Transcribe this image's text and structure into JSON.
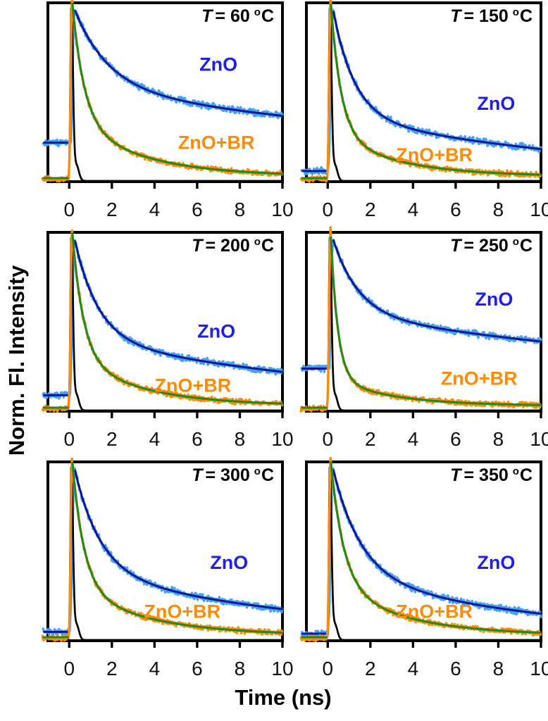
{
  "figure": {
    "y_axis_label": "Norm. Fl. Intensity",
    "x_axis_label": "Time (ns)"
  },
  "colors": {
    "zno_data": "#42A0F5",
    "zno_fit": "#0A1496",
    "zno_label": "#1E1EEF",
    "znobr_data": "#FF8A05",
    "znobr_fit": "#1E8B1E",
    "znobr_label": "#FF8A05",
    "irf": "#000000",
    "axis": "#000000",
    "tick_text": "#111111"
  },
  "chart_data": {
    "type": "line",
    "description": "Normalized time-resolved fluorescence decay curves of ZnO and ZnO+BR films annealed at six temperatures; noisy data traces with smooth fit lines and a sharp black instrument response function near t=0.",
    "layout": {
      "rows": 3,
      "cols": 2,
      "legend": "in-panel text annotations",
      "grid": false
    },
    "x_axis": {
      "label": "Time (ns)",
      "range": [
        -1,
        10
      ],
      "ticks": [
        0,
        2,
        4,
        6,
        8,
        10
      ],
      "tick_labels": [
        "0",
        "2",
        "4",
        "6",
        "8",
        "10"
      ]
    },
    "y_axis": {
      "label": "Norm. Fl. Intensity",
      "range": [
        0,
        1.05
      ],
      "ticks": []
    },
    "series_legend": [
      {
        "name": "ZnO",
        "style": "noisy data + dark navy fit"
      },
      {
        "name": "ZnO+BR",
        "style": "noisy data + green fit"
      },
      {
        "name": "IRF",
        "style": "black instrument response spike"
      }
    ],
    "panels": [
      {
        "temperature_c": 60,
        "title": {
          "full": "T = 60 °C",
          "var": "T",
          "rest": "= 60",
          "deg": "o",
          "unit": "C"
        },
        "annotations": [
          {
            "text": "ZnO",
            "t": 7.0,
            "intensity": 0.66
          },
          {
            "text": "ZnO+BR",
            "t": 6.9,
            "intensity": 0.22
          }
        ],
        "series": {
          "zno": {
            "pre_baseline": 0.22,
            "peak": 0.97,
            "t_peak": 0.25,
            "rise_sigma": 0.1,
            "a1": 0.46,
            "tau1": 1.6,
            "a2": 0.54,
            "tau2": 28,
            "floor": 0,
            "value_at_2ns": 0.63,
            "value_at_10ns": 0.4
          },
          "zno_br": {
            "pre_baseline": 0.015,
            "peak": 1.0,
            "t_peak": 0.13,
            "rise_sigma": 0.06,
            "a1": 0.68,
            "tau1": 0.55,
            "a2": 0.32,
            "tau2": 3.2,
            "floor": 0.03,
            "value_at_2ns": 0.18,
            "value_at_10ns": 0.05
          },
          "irf": {
            "peak": 0.985,
            "t_peak": 0.1,
            "sigma_rise": 0.045,
            "sigma_fall": 0.075,
            "shoulder_amp": 0.09,
            "shoulder_t": 0.33,
            "shoulder_sigma": 0.12,
            "base": 0.004
          }
        }
      },
      {
        "temperature_c": 150,
        "title": {
          "full": "T = 150 °C",
          "var": "T",
          "rest": "= 150",
          "deg": "o",
          "unit": "C"
        },
        "annotations": [
          {
            "text": "ZnO",
            "t": 7.9,
            "intensity": 0.44
          },
          {
            "text": "ZnO+BR",
            "t": 5.0,
            "intensity": 0.15
          }
        ],
        "series": {
          "zno": {
            "pre_baseline": 0.06,
            "peak": 0.97,
            "t_peak": 0.25,
            "rise_sigma": 0.1,
            "a1": 0.62,
            "tau1": 1.0,
            "a2": 0.38,
            "tau2": 14,
            "floor": 0,
            "value_at_2ns": 0.42,
            "value_at_10ns": 0.19
          },
          "zno_br": {
            "pre_baseline": 0.015,
            "peak": 1.0,
            "t_peak": 0.13,
            "rise_sigma": 0.06,
            "a1": 0.75,
            "tau1": 0.48,
            "a2": 0.25,
            "tau2": 3.0,
            "floor": 0.03,
            "value_at_2ns": 0.13,
            "value_at_10ns": 0.04
          },
          "irf": {
            "peak": 0.985,
            "t_peak": 0.1,
            "sigma_rise": 0.045,
            "sigma_fall": 0.075,
            "shoulder_amp": 0.09,
            "shoulder_t": 0.33,
            "shoulder_sigma": 0.12,
            "base": 0.004
          }
        }
      },
      {
        "temperature_c": 200,
        "title": {
          "full": "T = 200 °C",
          "var": "T",
          "rest": "= 200",
          "deg": "o",
          "unit": "C"
        },
        "annotations": [
          {
            "text": "ZnO",
            "t": 6.9,
            "intensity": 0.45
          },
          {
            "text": "ZnO+BR",
            "t": 5.8,
            "intensity": 0.145
          }
        ],
        "series": {
          "zno": {
            "pre_baseline": 0.09,
            "peak": 0.97,
            "t_peak": 0.25,
            "rise_sigma": 0.1,
            "a1": 0.58,
            "tau1": 1.1,
            "a2": 0.42,
            "tau2": 16,
            "floor": 0,
            "value_at_2ns": 0.46,
            "value_at_10ns": 0.23
          },
          "zno_br": {
            "pre_baseline": 0.015,
            "peak": 1.0,
            "t_peak": 0.13,
            "rise_sigma": 0.06,
            "a1": 0.72,
            "tau1": 0.52,
            "a2": 0.28,
            "tau2": 3.2,
            "floor": 0.03,
            "value_at_2ns": 0.15,
            "value_at_10ns": 0.04
          },
          "irf": {
            "peak": 0.985,
            "t_peak": 0.1,
            "sigma_rise": 0.045,
            "sigma_fall": 0.075,
            "shoulder_amp": 0.09,
            "shoulder_t": 0.33,
            "shoulder_sigma": 0.12,
            "base": 0.004
          }
        }
      },
      {
        "temperature_c": 250,
        "title": {
          "full": "T = 250 °C",
          "var": "T",
          "rest": "= 250",
          "deg": "o",
          "unit": "C"
        },
        "annotations": [
          {
            "text": "ZnO",
            "t": 7.8,
            "intensity": 0.63
          },
          {
            "text": "ZnO+BR",
            "t": 7.1,
            "intensity": 0.185
          }
        ],
        "series": {
          "zno": {
            "pre_baseline": 0.24,
            "peak": 0.97,
            "t_peak": 0.25,
            "rise_sigma": 0.1,
            "a1": 0.44,
            "tau1": 1.2,
            "a2": 0.56,
            "tau2": 30,
            "floor": 0,
            "value_at_2ns": 0.62,
            "value_at_10ns": 0.42
          },
          "zno_br": {
            "pre_baseline": 0.015,
            "peak": 1.0,
            "t_peak": 0.13,
            "rise_sigma": 0.06,
            "a1": 0.84,
            "tau1": 0.33,
            "a2": 0.16,
            "tau2": 2.8,
            "floor": 0.03,
            "value_at_2ns": 0.1,
            "value_at_10ns": 0.04
          },
          "irf": {
            "peak": 0.985,
            "t_peak": 0.1,
            "sigma_rise": 0.045,
            "sigma_fall": 0.075,
            "shoulder_amp": 0.09,
            "shoulder_t": 0.33,
            "shoulder_sigma": 0.12,
            "base": 0.004
          }
        }
      },
      {
        "temperature_c": 300,
        "title": {
          "full": "T = 300 °C",
          "var": "T",
          "rest": "= 300",
          "deg": "o",
          "unit": "C"
        },
        "annotations": [
          {
            "text": "ZnO",
            "t": 7.5,
            "intensity": 0.44
          },
          {
            "text": "ZnO+BR",
            "t": 5.3,
            "intensity": 0.165
          }
        ],
        "series": {
          "zno": {
            "pre_baseline": 0.05,
            "peak": 0.97,
            "t_peak": 0.25,
            "rise_sigma": 0.1,
            "a1": 0.6,
            "tau1": 1.2,
            "a2": 0.4,
            "tau2": 12.5,
            "floor": 0,
            "value_at_2ns": 0.45,
            "value_at_10ns": 0.18
          },
          "zno_br": {
            "pre_baseline": 0.015,
            "peak": 1.0,
            "t_peak": 0.13,
            "rise_sigma": 0.06,
            "a1": 0.72,
            "tau1": 0.55,
            "a2": 0.28,
            "tau2": 3.4,
            "floor": 0.03,
            "value_at_2ns": 0.16,
            "value_at_10ns": 0.05
          },
          "irf": {
            "peak": 0.985,
            "t_peak": 0.1,
            "sigma_rise": 0.045,
            "sigma_fall": 0.075,
            "shoulder_amp": 0.09,
            "shoulder_t": 0.33,
            "shoulder_sigma": 0.12,
            "base": 0.004
          }
        }
      },
      {
        "temperature_c": 350,
        "title": {
          "full": "T = 350 °C",
          "var": "T",
          "rest": "= 350",
          "deg": "o",
          "unit": "C"
        },
        "annotations": [
          {
            "text": "ZnO",
            "t": 7.9,
            "intensity": 0.44
          },
          {
            "text": "ZnO+BR",
            "t": 5.0,
            "intensity": 0.165
          }
        ],
        "series": {
          "zno": {
            "pre_baseline": 0.04,
            "peak": 0.97,
            "t_peak": 0.25,
            "rise_sigma": 0.1,
            "a1": 0.62,
            "tau1": 1.3,
            "a2": 0.38,
            "tau2": 11,
            "floor": 0,
            "value_at_2ns": 0.45,
            "value_at_10ns": 0.15
          },
          "zno_br": {
            "pre_baseline": 0.015,
            "peak": 1.0,
            "t_peak": 0.13,
            "rise_sigma": 0.06,
            "a1": 0.7,
            "tau1": 0.6,
            "a2": 0.3,
            "tau2": 3.3,
            "floor": 0.03,
            "value_at_2ns": 0.17,
            "value_at_10ns": 0.05
          },
          "irf": {
            "peak": 0.985,
            "t_peak": 0.1,
            "sigma_rise": 0.045,
            "sigma_fall": 0.075,
            "shoulder_amp": 0.09,
            "shoulder_t": 0.33,
            "shoulder_sigma": 0.12,
            "base": 0.004
          }
        }
      }
    ]
  }
}
